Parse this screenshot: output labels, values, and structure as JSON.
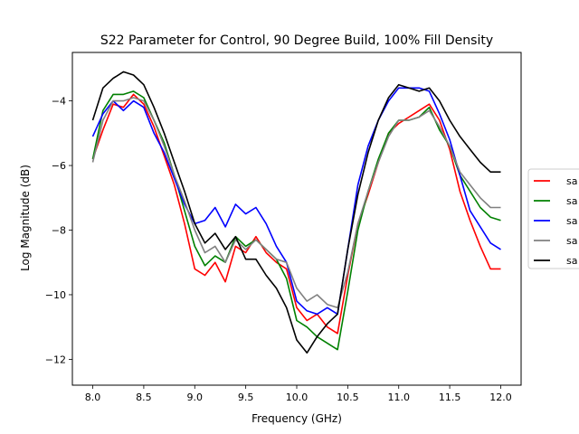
{
  "chart_data": {
    "type": "line",
    "title": "S22 Parameter for Control, 90 Degree Build, 100% Fill Density",
    "xlabel": "Frequency (GHz)",
    "ylabel": "Log Magnitude (dB)",
    "xlim": [
      7.8,
      12.2
    ],
    "ylim": [
      -12.8,
      -2.5
    ],
    "xticks": [
      8.0,
      8.5,
      9.0,
      9.5,
      10.0,
      10.5,
      11.0,
      11.5,
      12.0
    ],
    "xtick_labels": [
      "8.0",
      "8.5",
      "9.0",
      "9.5",
      "10.0",
      "10.5",
      "11.0",
      "11.5",
      "12.0"
    ],
    "yticks": [
      -12,
      -10,
      -8,
      -6,
      -4
    ],
    "ytick_labels": [
      "−12",
      "−10",
      "−8",
      "−6",
      "−4"
    ],
    "grid": false,
    "legend_position": "right, outside plot area",
    "series": [
      {
        "name": "sa",
        "color": "#ff0000",
        "x": [
          8.0,
          8.1,
          8.2,
          8.3,
          8.4,
          8.5,
          8.6,
          8.7,
          8.8,
          8.9,
          9.0,
          9.1,
          9.2,
          9.3,
          9.4,
          9.5,
          9.6,
          9.7,
          9.8,
          9.9,
          10.0,
          10.1,
          10.2,
          10.3,
          10.4,
          10.5,
          10.6,
          10.7,
          10.8,
          10.9,
          11.0,
          11.1,
          11.2,
          11.3,
          11.4,
          11.5,
          11.6,
          11.7,
          11.8,
          11.9,
          12.0
        ],
        "y": [
          -5.8,
          -4.9,
          -4.1,
          -4.2,
          -3.8,
          -4.1,
          -4.8,
          -5.7,
          -6.6,
          -7.8,
          -9.2,
          -9.4,
          -9.0,
          -9.6,
          -8.5,
          -8.7,
          -8.2,
          -8.7,
          -9.0,
          -9.2,
          -10.4,
          -10.8,
          -10.6,
          -11.0,
          -11.2,
          -9.4,
          -7.8,
          -6.9,
          -5.9,
          -5.0,
          -4.7,
          -4.5,
          -4.3,
          -4.1,
          -4.6,
          -5.5,
          -6.8,
          -7.7,
          -8.5,
          -9.2,
          -9.2
        ]
      },
      {
        "name": "sa",
        "color": "#008000",
        "x": [
          8.0,
          8.1,
          8.2,
          8.3,
          8.4,
          8.5,
          8.6,
          8.7,
          8.8,
          8.9,
          9.0,
          9.1,
          9.2,
          9.3,
          9.4,
          9.5,
          9.6,
          9.7,
          9.8,
          9.9,
          10.0,
          10.1,
          10.2,
          10.3,
          10.4,
          10.5,
          10.6,
          10.7,
          10.8,
          10.9,
          11.0,
          11.1,
          11.2,
          11.3,
          11.4,
          11.5,
          11.6,
          11.7,
          11.8,
          11.9,
          12.0
        ],
        "y": [
          -5.8,
          -4.3,
          -3.8,
          -3.8,
          -3.7,
          -3.9,
          -4.6,
          -5.3,
          -6.3,
          -7.4,
          -8.5,
          -9.1,
          -8.8,
          -9.0,
          -8.2,
          -8.5,
          -8.3,
          -8.6,
          -8.9,
          -9.5,
          -10.8,
          -11.0,
          -11.3,
          -11.5,
          -11.7,
          -9.9,
          -8.0,
          -6.8,
          -5.8,
          -5.0,
          -4.6,
          -4.6,
          -4.5,
          -4.2,
          -4.9,
          -5.4,
          -6.3,
          -6.8,
          -7.3,
          -7.6,
          -7.7
        ]
      },
      {
        "name": "sa",
        "color": "#0000ff",
        "x": [
          8.0,
          8.1,
          8.2,
          8.3,
          8.4,
          8.5,
          8.6,
          8.7,
          8.8,
          8.9,
          9.0,
          9.1,
          9.2,
          9.3,
          9.4,
          9.5,
          9.6,
          9.7,
          9.8,
          9.9,
          10.0,
          10.1,
          10.2,
          10.3,
          10.4,
          10.5,
          10.6,
          10.7,
          10.8,
          10.9,
          11.0,
          11.1,
          11.2,
          11.3,
          11.4,
          11.5,
          11.6,
          11.7,
          11.8,
          11.9,
          12.0
        ],
        "y": [
          -5.1,
          -4.4,
          -4.0,
          -4.3,
          -4.0,
          -4.2,
          -5.0,
          -5.6,
          -6.4,
          -7.2,
          -7.8,
          -7.7,
          -7.3,
          -7.9,
          -7.2,
          -7.5,
          -7.3,
          -7.8,
          -8.5,
          -9.0,
          -10.2,
          -10.5,
          -10.6,
          -10.4,
          -10.6,
          -8.6,
          -6.6,
          -5.4,
          -4.6,
          -4.0,
          -3.6,
          -3.6,
          -3.6,
          -3.7,
          -4.4,
          -5.2,
          -6.3,
          -7.4,
          -7.9,
          -8.4,
          -8.6
        ]
      },
      {
        "name": "sa",
        "color": "#808080",
        "x": [
          8.0,
          8.1,
          8.2,
          8.3,
          8.4,
          8.5,
          8.6,
          8.7,
          8.8,
          8.9,
          9.0,
          9.1,
          9.2,
          9.3,
          9.4,
          9.5,
          9.6,
          9.7,
          9.8,
          9.9,
          10.0,
          10.1,
          10.2,
          10.3,
          10.4,
          10.5,
          10.6,
          10.7,
          10.8,
          10.9,
          11.0,
          11.1,
          11.2,
          11.3,
          11.4,
          11.5,
          11.6,
          11.7,
          11.8,
          11.9,
          12.0
        ],
        "y": [
          -5.9,
          -4.6,
          -4.0,
          -4.0,
          -3.9,
          -4.0,
          -4.6,
          -5.4,
          -6.3,
          -7.1,
          -8.0,
          -8.7,
          -8.5,
          -9.0,
          -8.3,
          -8.6,
          -8.3,
          -8.6,
          -8.9,
          -9.0,
          -9.8,
          -10.2,
          -10.0,
          -10.3,
          -10.4,
          -9.3,
          -7.8,
          -6.8,
          -5.9,
          -5.1,
          -4.6,
          -4.6,
          -4.5,
          -4.3,
          -4.8,
          -5.4,
          -6.2,
          -6.6,
          -7.0,
          -7.3,
          -7.3
        ]
      },
      {
        "name": "sa",
        "color": "#000000",
        "x": [
          8.0,
          8.1,
          8.2,
          8.3,
          8.4,
          8.5,
          8.6,
          8.7,
          8.8,
          8.9,
          9.0,
          9.1,
          9.2,
          9.3,
          9.4,
          9.5,
          9.6,
          9.7,
          9.8,
          9.9,
          10.0,
          10.1,
          10.2,
          10.3,
          10.4,
          10.5,
          10.6,
          10.7,
          10.8,
          10.9,
          11.0,
          11.1,
          11.2,
          11.3,
          11.4,
          11.5,
          11.6,
          11.7,
          11.8,
          11.9,
          12.0
        ],
        "y": [
          -4.6,
          -3.6,
          -3.3,
          -3.1,
          -3.2,
          -3.5,
          -4.2,
          -5.0,
          -5.9,
          -6.8,
          -7.8,
          -8.4,
          -8.1,
          -8.6,
          -8.2,
          -8.9,
          -8.9,
          -9.4,
          -9.8,
          -10.4,
          -11.4,
          -11.8,
          -11.3,
          -10.9,
          -10.6,
          -8.6,
          -6.9,
          -5.6,
          -4.6,
          -3.9,
          -3.5,
          -3.6,
          -3.7,
          -3.6,
          -4.0,
          -4.6,
          -5.1,
          -5.5,
          -5.9,
          -6.2,
          -6.2
        ]
      }
    ]
  }
}
